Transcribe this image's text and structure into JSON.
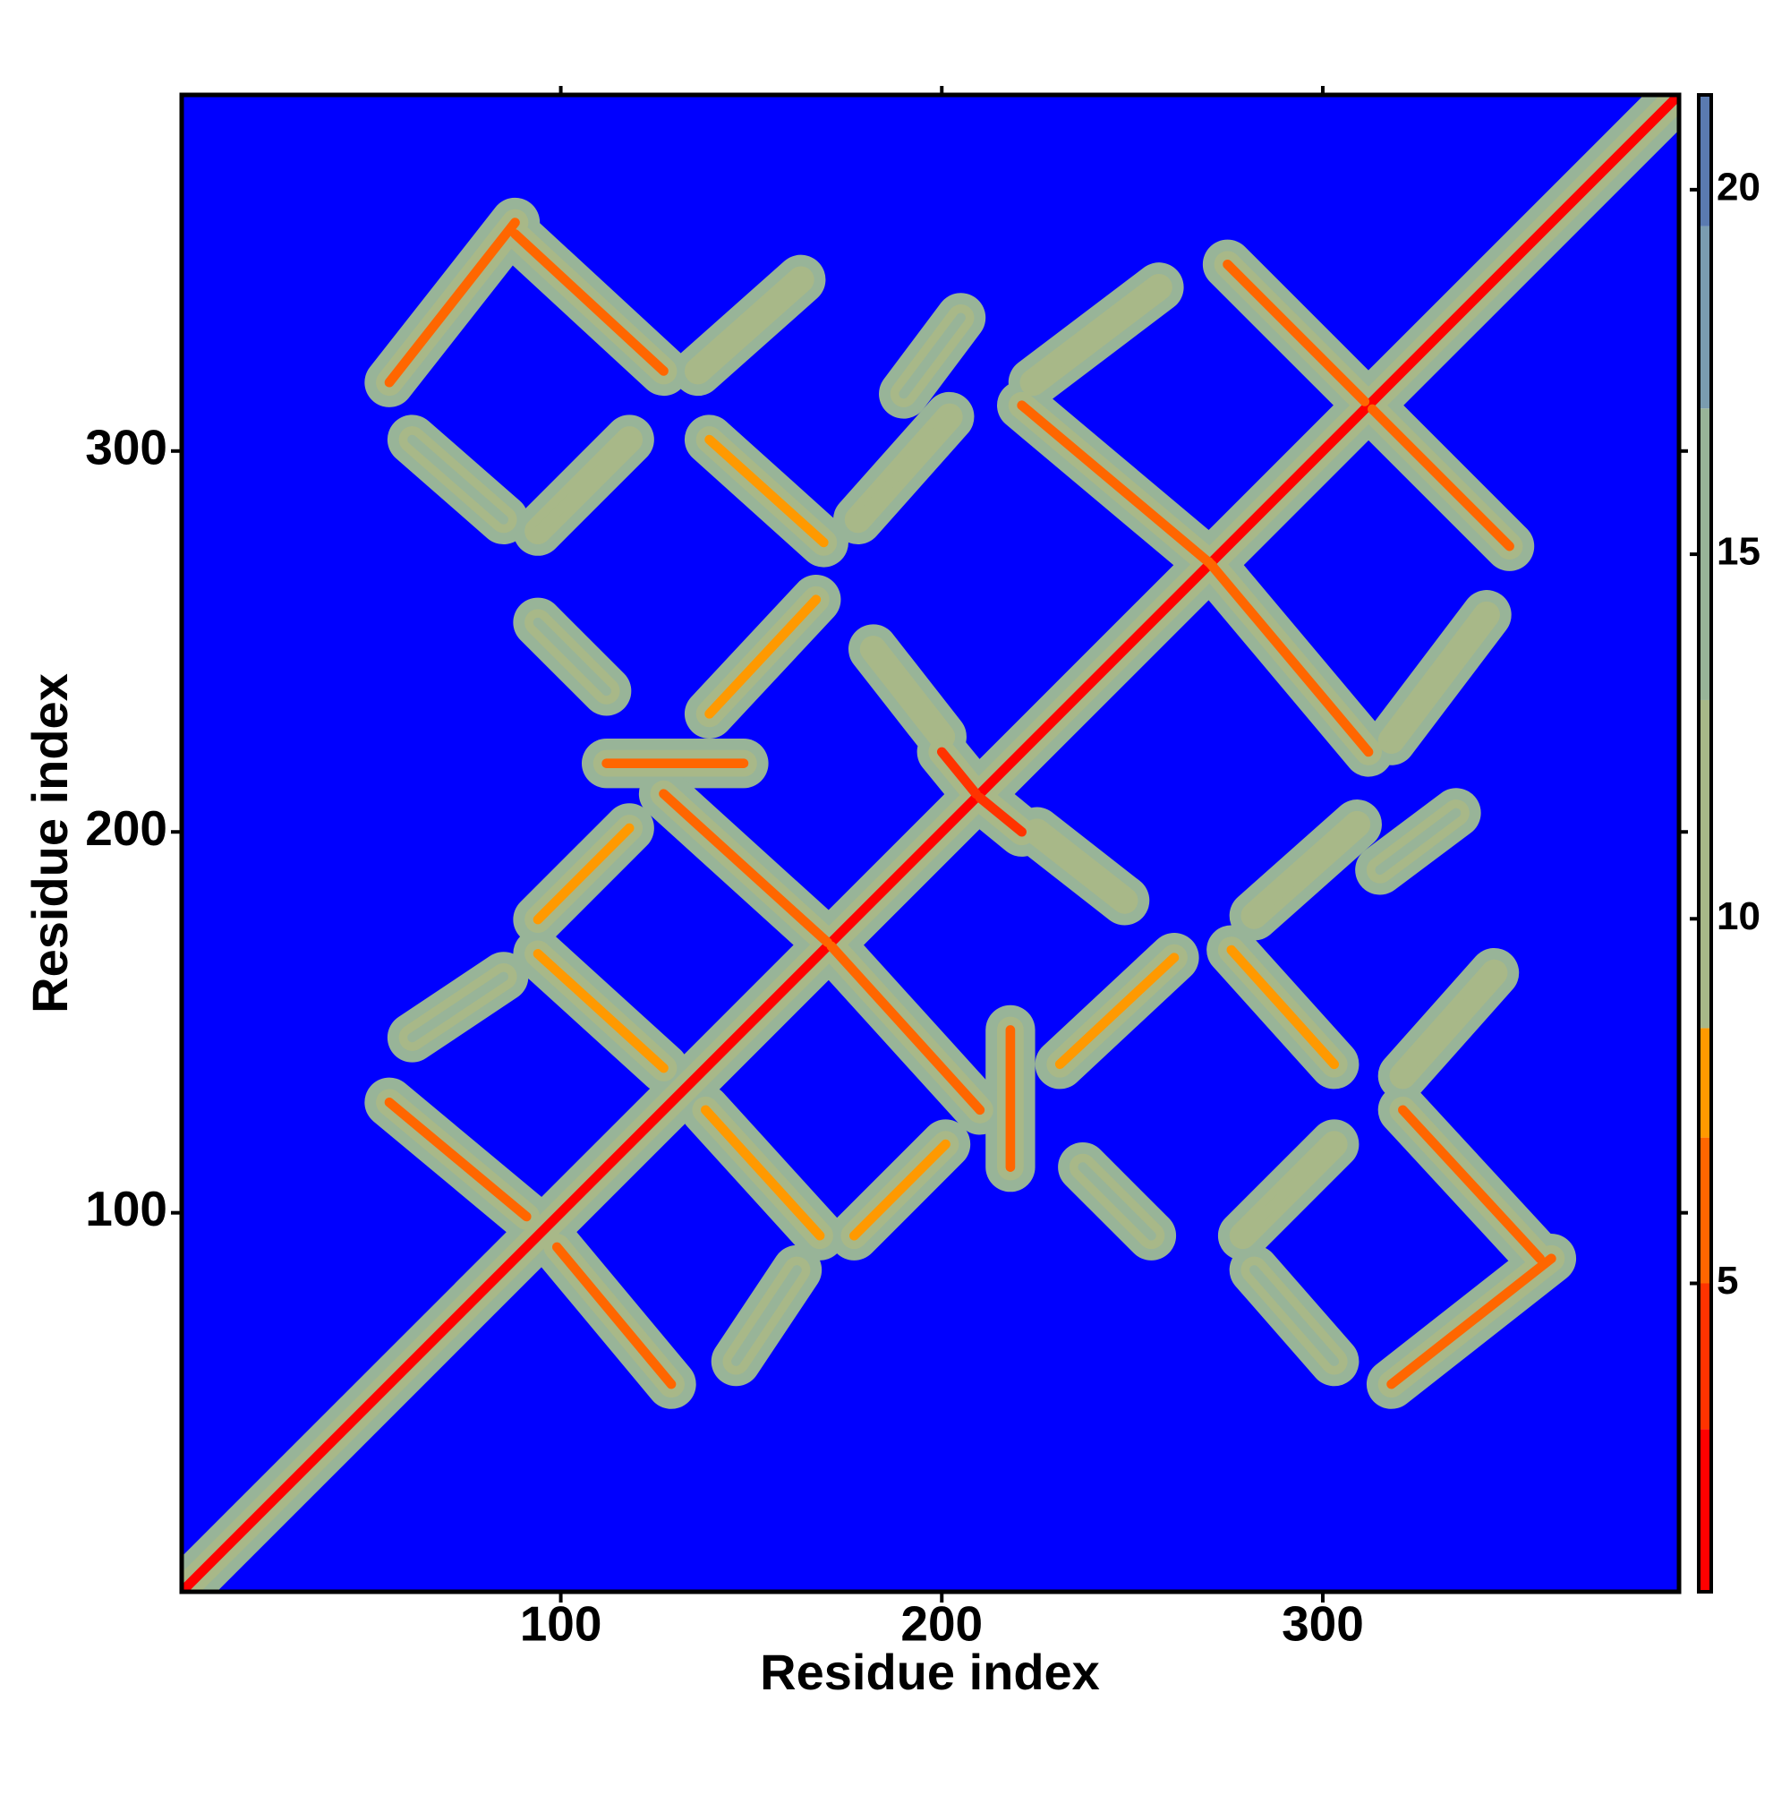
{
  "chart_data": {
    "type": "heatmap",
    "xlabel": "Residue index",
    "ylabel": "Residue index",
    "xlim": [
      0.5,
      393.5
    ],
    "ylim": [
      0.5,
      393.5
    ],
    "xticks": [
      100,
      200,
      300
    ],
    "yticks": [
      100,
      200,
      300
    ],
    "clim": [
      0.77,
      21.3
    ],
    "cticks": [
      5,
      10,
      15,
      20
    ],
    "colorscale": [
      {
        "value": 0.77,
        "color": "#ff0000"
      },
      {
        "value": 3,
        "color": "#ff3300"
      },
      {
        "value": 5,
        "color": "#ff6600"
      },
      {
        "value": 7,
        "color": "#ff9900"
      },
      {
        "value": 8.5,
        "color": "#a8b888"
      },
      {
        "value": 13,
        "color": "#98b498"
      },
      {
        "value": 17,
        "color": "#7a9cb0"
      },
      {
        "value": 19.5,
        "color": "#5a7ab0"
      }
    ],
    "background_color": "#0000ff",
    "symmetric": true,
    "bands": [
      {
        "from": [
          1,
          1
        ],
        "to": [
          393,
          393
        ],
        "value": 1.5
      },
      {
        "from": [
          55,
          318
        ],
        "to": [
          88,
          360
        ],
        "value": 6
      },
      {
        "from": [
          88,
          357
        ],
        "to": [
          127,
          321
        ],
        "value": 6.5
      },
      {
        "from": [
          136,
          321
        ],
        "to": [
          163,
          345
        ],
        "value": 11
      },
      {
        "from": [
          94,
          279
        ],
        "to": [
          118,
          303
        ],
        "value": 11
      },
      {
        "from": [
          61,
          303
        ],
        "to": [
          85,
          282
        ],
        "value": 13
      },
      {
        "from": [
          139,
          303
        ],
        "to": [
          169,
          276
        ],
        "value": 7
      },
      {
        "from": [
          178,
          282
        ],
        "to": [
          202,
          309
        ],
        "value": 12
      },
      {
        "from": [
          221,
          312
        ],
        "to": [
          271,
          270
        ],
        "value": 6.5
      },
      {
        "from": [
          224,
          318
        ],
        "to": [
          257,
          343
        ],
        "value": 12
      },
      {
        "from": [
          275,
          349
        ],
        "to": [
          311,
          313
        ],
        "value": 6.5
      },
      {
        "from": [
          139,
          231
        ],
        "to": [
          167,
          261
        ],
        "value": 7
      },
      {
        "from": [
          94,
          255
        ],
        "to": [
          112,
          237
        ],
        "value": 13
      },
      {
        "from": [
          112,
          218
        ],
        "to": [
          148,
          218
        ],
        "value": 6
      },
      {
        "from": [
          127,
          210
        ],
        "to": [
          170,
          171
        ],
        "value": 6
      },
      {
        "from": [
          94,
          177
        ],
        "to": [
          118,
          201
        ],
        "value": 8
      },
      {
        "from": [
          182,
          248
        ],
        "to": [
          200,
          225
        ],
        "value": 9
      },
      {
        "from": [
          200,
          221
        ],
        "to": [
          209,
          210
        ],
        "value": 4
      },
      {
        "from": [
          55,
          129
        ],
        "to": [
          91,
          99
        ],
        "value": 6
      },
      {
        "from": [
          61,
          146
        ],
        "to": [
          85,
          162
        ],
        "value": 13
      },
      {
        "from": [
          94,
          168
        ],
        "to": [
          127,
          138
        ],
        "value": 7
      },
      {
        "from": [
          190,
          315
        ],
        "to": [
          205,
          335
        ],
        "value": 14
      }
    ]
  }
}
